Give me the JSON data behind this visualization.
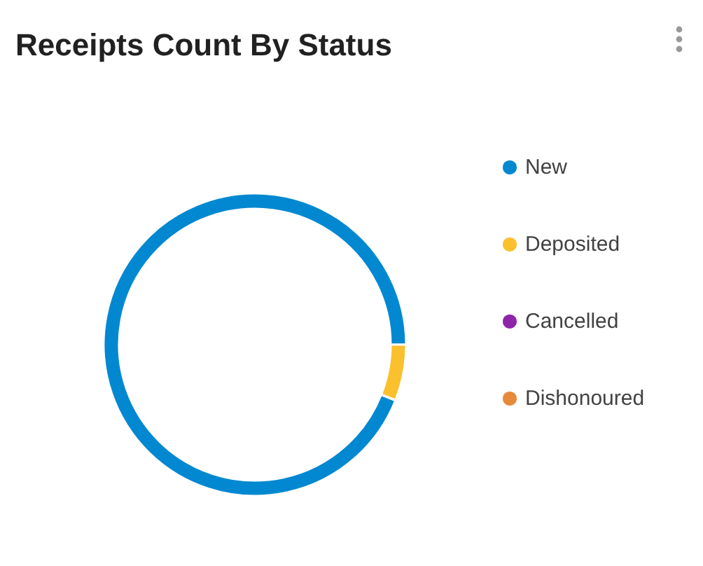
{
  "chart_data": {
    "type": "donut",
    "title": "Receipts Count By Status",
    "categories": [
      "New",
      "Deposited",
      "Cancelled",
      "Dishonoured"
    ],
    "values": [
      94,
      6,
      0,
      0
    ],
    "colors": [
      "#0288d1",
      "#fbc02d",
      "#8e24aa",
      "#e6893a"
    ],
    "legend": "right"
  }
}
